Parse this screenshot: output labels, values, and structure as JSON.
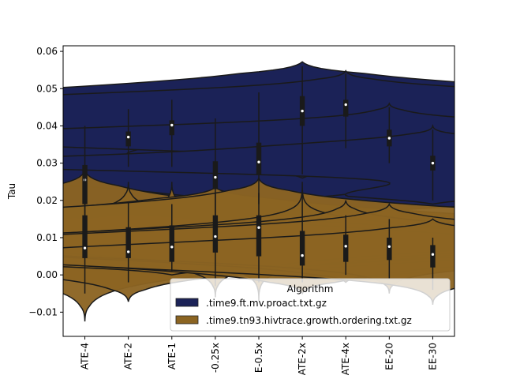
{
  "chart_data": {
    "type": "violin",
    "ylabel": "Tau",
    "xlabel": "",
    "ylim": [
      -0.0165,
      0.0615
    ],
    "yticks": [
      -0.01,
      0.0,
      0.01,
      0.02,
      0.03,
      0.04,
      0.05,
      0.06
    ],
    "ytick_labels": [
      "−0.01",
      "0.00",
      "0.01",
      "0.02",
      "0.03",
      "0.04",
      "0.05",
      "0.06"
    ],
    "categories": [
      "ATE-4",
      "ATE-2",
      "ATE-1",
      "-0.25x",
      "E-0.5x",
      "ATE-2x",
      "ATE-4x",
      "EE-20",
      "EE-30"
    ],
    "legend": {
      "title": "Algorithm",
      "placement": "lower right"
    },
    "series": [
      {
        "name": ".time9.ft.mv.proact.txt.gz",
        "color": "#1b2257",
        "violins": [
          {
            "min": 0.015,
            "max": 0.0462,
            "q1": 0.019,
            "median": 0.0255,
            "q3": 0.0295,
            "wmin": 0.015,
            "wmax": 0.04,
            "maxw": 0.016,
            "modes": [
              [
                0.0255,
                1.0,
                0.006
              ]
            ]
          },
          {
            "min": 0.0265,
            "max": 0.0448,
            "q1": 0.0345,
            "median": 0.037,
            "q3": 0.0385,
            "wmin": 0.029,
            "wmax": 0.0445,
            "maxw": 0.023,
            "modes": [
              [
                0.0368,
                1.0,
                0.0035
              ],
              [
                0.03,
                0.35,
                0.002
              ]
            ]
          },
          {
            "min": 0.027,
            "max": 0.048,
            "q1": 0.0375,
            "median": 0.0402,
            "q3": 0.0415,
            "wmin": 0.029,
            "wmax": 0.047,
            "maxw": 0.023,
            "modes": [
              [
                0.0402,
                1.0,
                0.0032
              ],
              [
                0.034,
                0.25,
                0.002
              ]
            ]
          },
          {
            "min": 0.014,
            "max": 0.0432,
            "q1": 0.023,
            "median": 0.0262,
            "q3": 0.0305,
            "wmin": 0.015,
            "wmax": 0.042,
            "maxw": 0.021,
            "modes": [
              [
                0.0262,
                1.0,
                0.0045
              ],
              [
                0.02,
                0.4,
                0.003
              ]
            ]
          },
          {
            "min": 0.018,
            "max": 0.0505,
            "q1": 0.027,
            "median": 0.0303,
            "q3": 0.0355,
            "wmin": 0.019,
            "wmax": 0.049,
            "maxw": 0.023,
            "modes": [
              [
                0.031,
                1.0,
                0.005
              ]
            ]
          },
          {
            "min": 0.026,
            "max": 0.0572,
            "q1": 0.04,
            "median": 0.044,
            "q3": 0.048,
            "wmin": 0.027,
            "wmax": 0.056,
            "maxw": 0.022,
            "modes": [
              [
                0.045,
                1.0,
                0.0045
              ],
              [
                0.032,
                0.35,
                0.003
              ]
            ]
          },
          {
            "min": 0.0325,
            "max": 0.0548,
            "q1": 0.0425,
            "median": 0.0457,
            "q3": 0.047,
            "wmin": 0.034,
            "wmax": 0.054,
            "maxw": 0.022,
            "modes": [
              [
                0.0455,
                1.0,
                0.003
              ],
              [
                0.04,
                0.6,
                0.0025
              ]
            ]
          },
          {
            "min": 0.0295,
            "max": 0.046,
            "q1": 0.0345,
            "median": 0.0367,
            "q3": 0.039,
            "wmin": 0.03,
            "wmax": 0.045,
            "maxw": 0.022,
            "modes": [
              [
                0.0368,
                1.0,
                0.0028
              ]
            ]
          },
          {
            "min": 0.019,
            "max": 0.04,
            "q1": 0.028,
            "median": 0.03,
            "q3": 0.032,
            "wmin": 0.02,
            "wmax": 0.039,
            "maxw": 0.023,
            "modes": [
              [
                0.0298,
                1.0,
                0.002
              ],
              [
                0.034,
                0.3,
                0.002
              ],
              [
                0.0215,
                0.18,
                0.002
              ]
            ]
          }
        ]
      },
      {
        "name": ".time9.tn93.hivtrace.growth.ordering.txt.gz",
        "color": "#8b6422",
        "violins": [
          {
            "min": -0.0125,
            "max": 0.028,
            "q1": 0.0045,
            "median": 0.0072,
            "q3": 0.016,
            "wmin": -0.005,
            "wmax": 0.026,
            "maxw": 0.023,
            "modes": [
              [
                0.01,
                1.0,
                0.006
              ]
            ]
          },
          {
            "min": -0.0072,
            "max": 0.025,
            "q1": 0.0045,
            "median": 0.0062,
            "q3": 0.0128,
            "wmin": -0.002,
            "wmax": 0.0195,
            "maxw": 0.02,
            "modes": [
              [
                0.0075,
                1.0,
                0.0045
              ]
            ]
          },
          {
            "min": 0.0,
            "max": 0.025,
            "q1": 0.0035,
            "median": 0.0075,
            "q3": 0.0133,
            "wmin": 0.001,
            "wmax": 0.019,
            "maxw": 0.02,
            "modes": [
              [
                0.0085,
                1.0,
                0.004
              ]
            ]
          },
          {
            "min": -0.006,
            "max": 0.0235,
            "q1": 0.006,
            "median": 0.0103,
            "q3": 0.016,
            "wmin": -0.003,
            "wmax": 0.022,
            "maxw": 0.02,
            "modes": [
              [
                0.0115,
                1.0,
                0.0045
              ]
            ]
          },
          {
            "min": -0.007,
            "max": 0.026,
            "q1": 0.005,
            "median": 0.0127,
            "q3": 0.016,
            "wmin": -0.002,
            "wmax": 0.022,
            "maxw": 0.023,
            "modes": [
              [
                0.012,
                1.0,
                0.0045
              ]
            ]
          },
          {
            "min": -0.005,
            "max": 0.025,
            "q1": 0.0025,
            "median": 0.0052,
            "q3": 0.0118,
            "wmin": -0.002,
            "wmax": 0.022,
            "maxw": 0.019,
            "modes": [
              [
                0.007,
                1.0,
                0.004
              ]
            ]
          },
          {
            "min": -0.002,
            "max": 0.02,
            "q1": 0.0035,
            "median": 0.0077,
            "q3": 0.0108,
            "wmin": 0.0,
            "wmax": 0.016,
            "maxw": 0.02,
            "modes": [
              [
                0.008,
                1.0,
                0.0035
              ]
            ]
          },
          {
            "min": -0.005,
            "max": 0.019,
            "q1": 0.004,
            "median": 0.0076,
            "q3": 0.01,
            "wmin": -0.001,
            "wmax": 0.015,
            "maxw": 0.021,
            "modes": [
              [
                0.008,
                1.0,
                0.0035
              ]
            ]
          },
          {
            "min": -0.008,
            "max": 0.015,
            "q1": 0.002,
            "median": 0.0055,
            "q3": 0.008,
            "wmin": -0.004,
            "wmax": 0.01,
            "maxw": 0.021,
            "modes": [
              [
                0.005,
                1.0,
                0.0035
              ]
            ]
          }
        ]
      }
    ]
  }
}
